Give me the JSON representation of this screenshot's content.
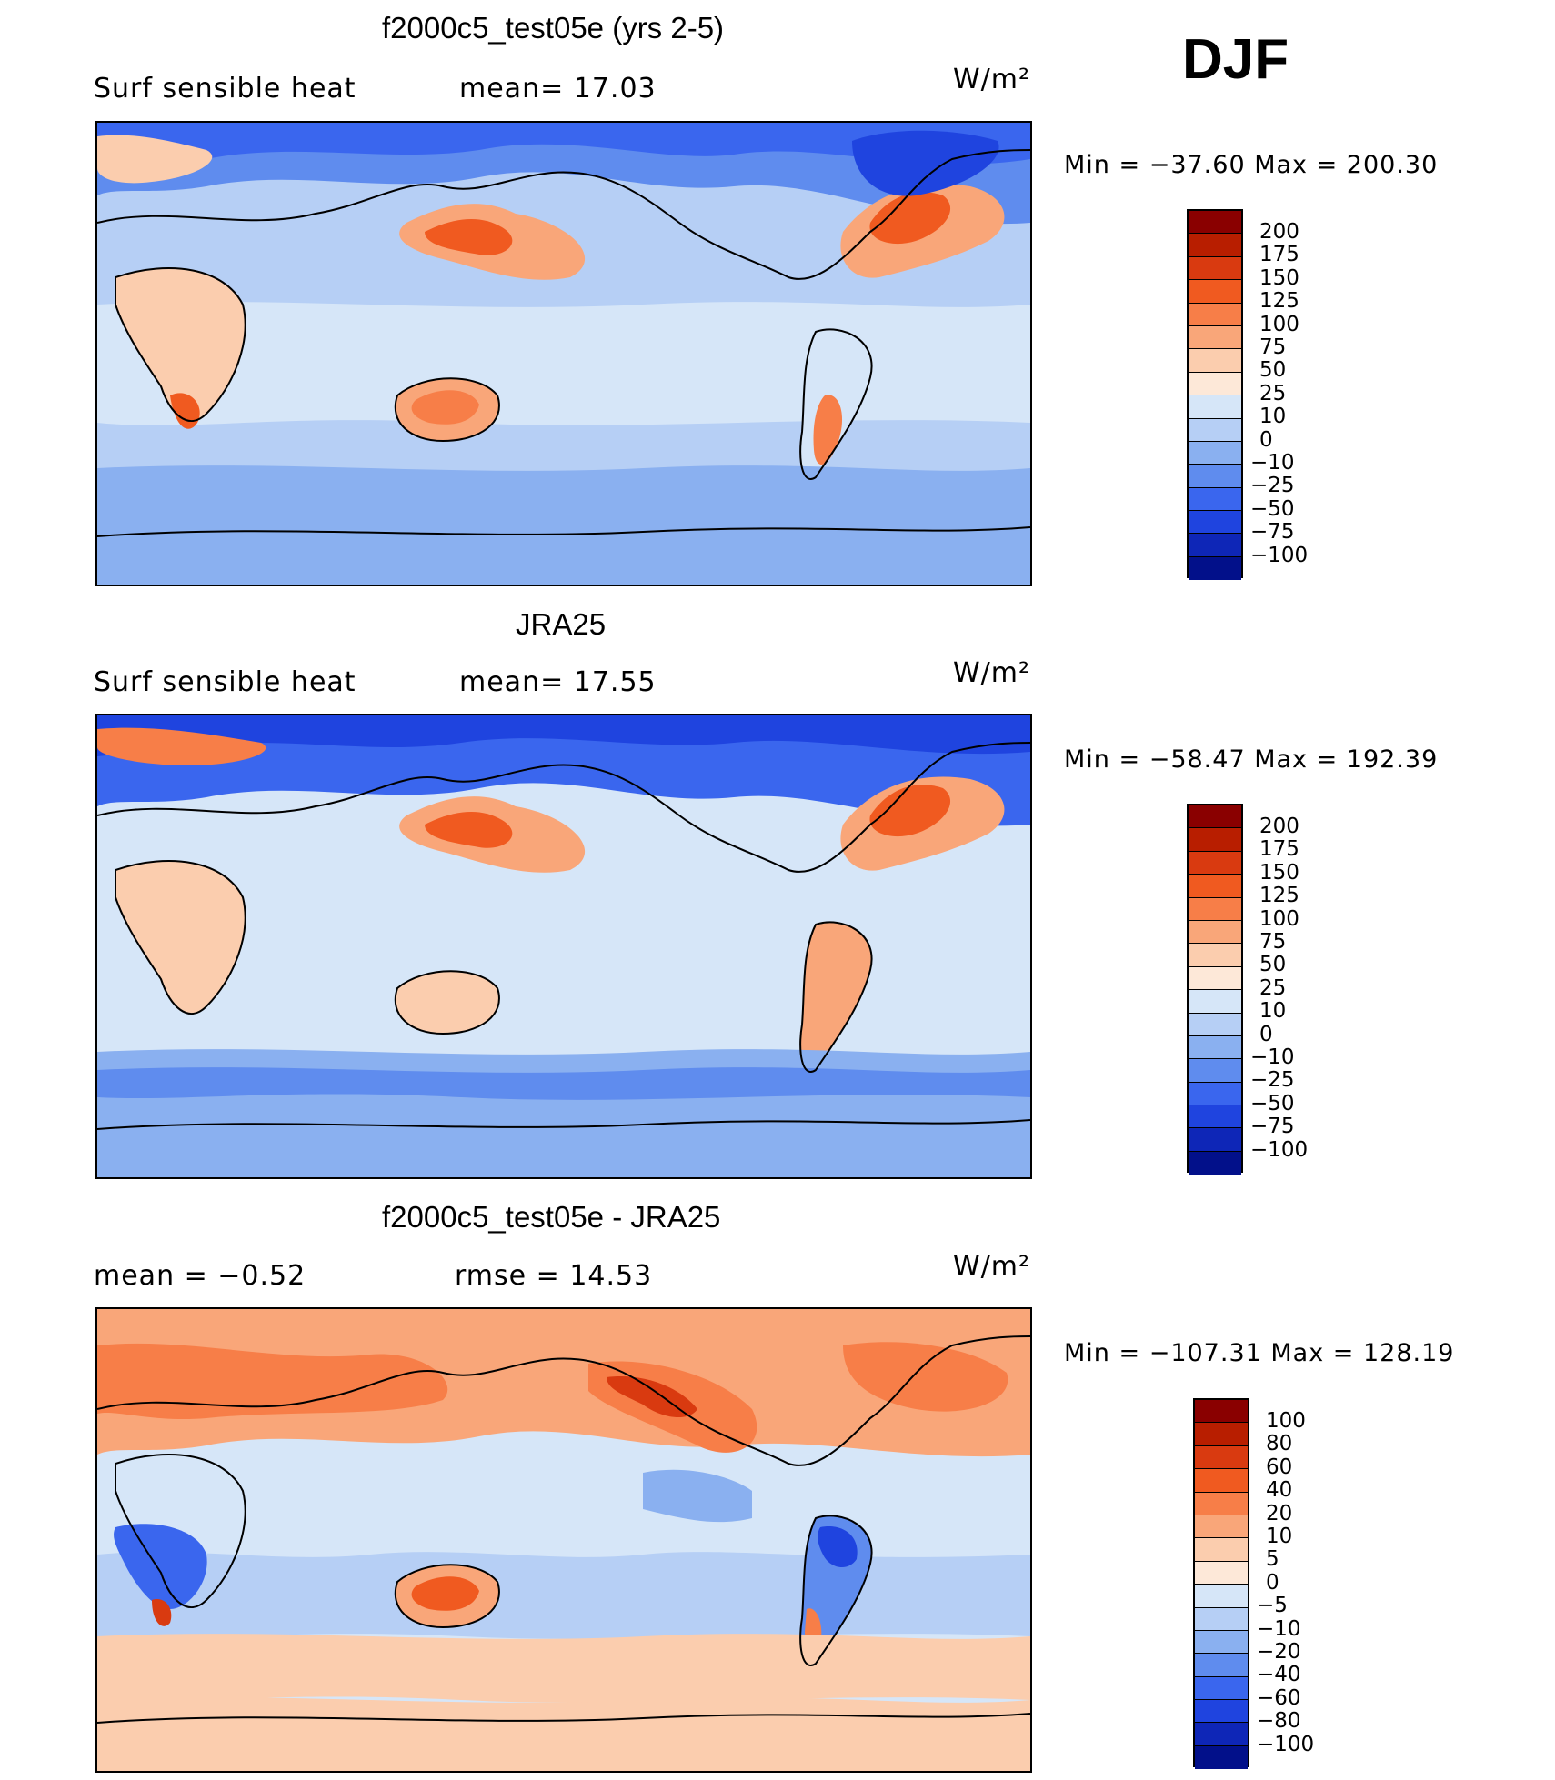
{
  "season": "DJF",
  "chart_data": [
    {
      "type": "heatmap",
      "title": "f2000c5_test05e (yrs 2-5)",
      "left_label": "Surf  sensible heat",
      "center_label": "mean=   17.03",
      "units": "W/m²",
      "minmax": "Min  =  −37.60  Max  =  200.30",
      "colorbar_levels": [
        "200",
        "175",
        "150",
        "125",
        "100",
        "75",
        "50",
        "25",
        "10",
        "0",
        "−10",
        "−25",
        "−50",
        "−75",
        "−100"
      ],
      "colorbar_colors": [
        "#8a0000",
        "#b81e00",
        "#d93a10",
        "#f05a20",
        "#f77e48",
        "#f9a679",
        "#fbcdae",
        "#fde8d8",
        "#d6e6f8",
        "#b6cff5",
        "#8ab0f0",
        "#5f8cee",
        "#3a66ee",
        "#1f44df",
        "#0e26b7",
        "#02108a"
      ],
      "mean": 17.03,
      "min": -37.6,
      "max": 200.3
    },
    {
      "type": "heatmap",
      "title": "JRA25",
      "left_label": "Surf  sensible heat",
      "center_label": "mean=   17.55",
      "units": "W/m²",
      "minmax": "Min  =  −58.47  Max  =  192.39",
      "colorbar_levels": [
        "200",
        "175",
        "150",
        "125",
        "100",
        "75",
        "50",
        "25",
        "10",
        "0",
        "−10",
        "−25",
        "−50",
        "−75",
        "−100"
      ],
      "colorbar_colors": [
        "#8a0000",
        "#b81e00",
        "#d93a10",
        "#f05a20",
        "#f77e48",
        "#f9a679",
        "#fbcdae",
        "#fde8d8",
        "#d6e6f8",
        "#b6cff5",
        "#8ab0f0",
        "#5f8cee",
        "#3a66ee",
        "#1f44df",
        "#0e26b7",
        "#02108a"
      ],
      "mean": 17.55,
      "min": -58.47,
      "max": 192.39
    },
    {
      "type": "heatmap",
      "title": "f2000c5_test05e - JRA25",
      "left_label": "mean  =    −0.52",
      "center_label": "rmse  =    14.53",
      "units": "W/m²",
      "minmax": "Min  =  −107.31  Max  =  128.19",
      "colorbar_levels": [
        "100",
        "80",
        "60",
        "40",
        "20",
        "10",
        "5",
        "0",
        "−5",
        "−10",
        "−20",
        "−40",
        "−60",
        "−80",
        "−100"
      ],
      "colorbar_colors": [
        "#8a0000",
        "#b81e00",
        "#d93a10",
        "#f05a20",
        "#f77e48",
        "#f9a679",
        "#fbcdae",
        "#fde8d8",
        "#d6e6f8",
        "#b6cff5",
        "#8ab0f0",
        "#5f8cee",
        "#3a66ee",
        "#1f44df",
        "#0e26b7",
        "#02108a"
      ],
      "mean": -0.52,
      "rmse": 14.53,
      "min": -107.31,
      "max": 128.19
    }
  ]
}
